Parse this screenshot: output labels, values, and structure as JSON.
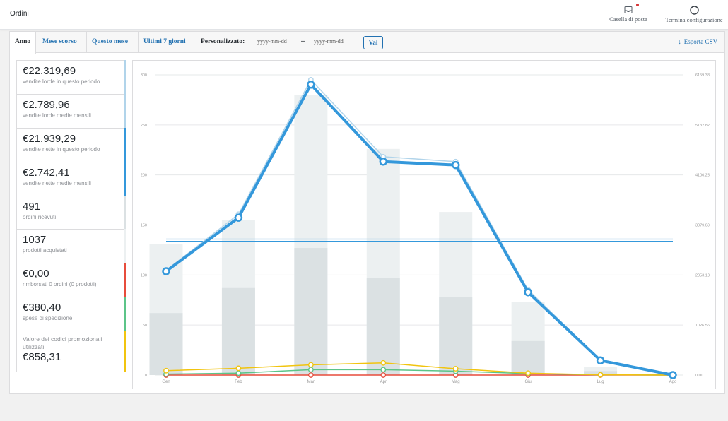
{
  "header": {
    "title": "Ordini",
    "inbox_label": "Casella di posta",
    "finish_label": "Termina configurazione"
  },
  "tabs": [
    {
      "label": "Anno",
      "active": true
    },
    {
      "label": "Mese scorso"
    },
    {
      "label": "Questo mese"
    },
    {
      "label": "Ultimi 7 giorni"
    }
  ],
  "custom_range": {
    "label": "Personalizzato:",
    "from_placeholder": "yyyy-mm-dd",
    "separator": "–",
    "to_placeholder": "yyyy-mm-dd",
    "go_label": "Vai"
  },
  "export_label": "Esporta CSV",
  "legend": [
    {
      "value": "€22.319,69",
      "label": "vendite lorde in questo periodo",
      "color": "#b1d4ea"
    },
    {
      "value": "€2.789,96",
      "label": "vendite lorde medie mensili",
      "color": "#b1d4ea"
    },
    {
      "value": "€21.939,29",
      "label": "vendite nette in questo periodo",
      "color": "#3498db"
    },
    {
      "value": "€2.742,41",
      "label": "vendite nette medie mensili",
      "color": "#3498db"
    },
    {
      "value": "491",
      "label": "ordini ricevuti",
      "color": "#dbe1e3"
    },
    {
      "value": "1037",
      "label": "prodotti acquistati",
      "color": "#ecf0f1"
    },
    {
      "value": "€0,00",
      "label": "rimborsati 0 ordini (0 prodotti)",
      "color": "#e74c3c"
    },
    {
      "value": "€380,40",
      "label": "spese di spedizione",
      "color": "#5cc488"
    },
    {
      "label": "Valore dei codici promozionali utilizzati:",
      "value": "€858,31",
      "color": "#f1c40f"
    }
  ],
  "chart_data": {
    "type": "bar",
    "categories": [
      "Gen",
      "Feb",
      "Mar",
      "Apr",
      "Mag",
      "Giu",
      "Lug",
      "Ago"
    ],
    "y_left_ticks": [
      "0",
      "50",
      "100",
      "150",
      "200",
      "250",
      "300"
    ],
    "y_right_ticks": [
      "0.00",
      "1026.56",
      "2053.13",
      "3079.69",
      "4106.25",
      "5132.82",
      "6159.38"
    ],
    "ylim_left": [
      0,
      300
    ],
    "ylim_right": [
      0,
      6159.38
    ],
    "series": [
      {
        "name": "prodotti acquistati",
        "kind": "bar",
        "axis": "left",
        "color": "#ecf0f1",
        "values": [
          131,
          155,
          280,
          226,
          163,
          73,
          8,
          0
        ]
      },
      {
        "name": "ordini ricevuti",
        "kind": "bar",
        "axis": "left",
        "color": "#dbe1e3",
        "values": [
          62,
          87,
          127,
          97,
          78,
          34,
          4,
          0
        ]
      },
      {
        "name": "vendite lorde",
        "kind": "line",
        "axis": "right",
        "color": "#b1d4ea",
        "values": [
          2150,
          3300,
          6060,
          4480,
          4380,
          1750,
          310,
          0
        ]
      },
      {
        "name": "vendite nette",
        "kind": "line",
        "axis": "right",
        "color": "#3498db",
        "values": [
          2130,
          3230,
          5960,
          4380,
          4310,
          1700,
          300,
          0
        ]
      },
      {
        "name": "valore codici promozionali",
        "kind": "line",
        "axis": "right",
        "color": "#f1c40f",
        "values": [
          90,
          140,
          210,
          250,
          130,
          40,
          5,
          0
        ]
      },
      {
        "name": "spese di spedizione",
        "kind": "line",
        "axis": "right",
        "color": "#5cc488",
        "values": [
          20,
          40,
          110,
          110,
          80,
          30,
          5,
          0
        ]
      },
      {
        "name": "rimborsi",
        "kind": "line",
        "axis": "right",
        "color": "#e74c3c",
        "values": [
          0,
          0,
          0,
          0,
          0,
          0,
          0,
          0
        ]
      }
    ],
    "averages": [
      {
        "name": "vendite lorde medie mensili",
        "axis": "right",
        "value": 2789.96,
        "color": "#b1d4ea"
      },
      {
        "name": "vendite nette medie mensili",
        "axis": "right",
        "value": 2742.41,
        "color": "#3498db"
      }
    ],
    "grid": true
  }
}
